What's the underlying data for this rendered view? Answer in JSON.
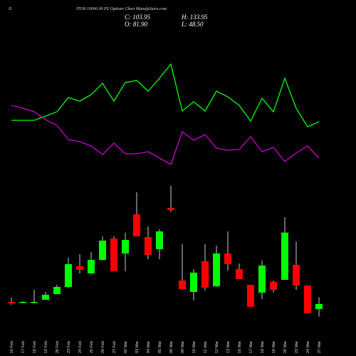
{
  "chart_data": {
    "type": "candlestick",
    "title_prefix": "D",
    "title": "ITON 10000.00 PE Options Chart MunafaSutra.com",
    "ohlc_labels": {
      "close": "C: 103.95",
      "high": "H: 133.95",
      "open": "O: 81.90",
      "low": "L: 48.50"
    },
    "categories": [
      "16 Feb",
      "17 Feb",
      "18 Feb",
      "19 Feb",
      "20 Feb",
      "23 Feb",
      "24 Feb",
      "25 Feb",
      "26 Feb",
      "27 Feb",
      "02 Mar",
      "03 Mar",
      "04 Mar",
      "05 Mar",
      "06 Mar",
      "09 Mar",
      "10 Mar",
      "11 Mar",
      "12 Mar",
      "13 Mar",
      "16 Mar",
      "17 Mar",
      "18 Mar",
      "19 Mar",
      "20 Mar",
      "23 Mar",
      "24 Mar",
      "27 Mar"
    ],
    "open": [
      113.4,
      110.3,
      110.3,
      122.9,
      148.1,
      179.6,
      270.9,
      239.4,
      299.3,
      393.8,
      327.6,
      500.9,
      400,
      346.5,
      529.2,
      207.9,
      157.5,
      293,
      182.7,
      327.6,
      258.3,
      189,
      154.4,
      201.6,
      211,
      277.2,
      185.9,
      81.9
    ],
    "high": [
      132.3,
      116.6,
      167,
      157.5,
      189,
      308.7,
      324.5,
      333.9,
      403.2,
      403.2,
      419.9,
      598.5,
      447.3,
      434.7,
      626.9,
      368.6,
      258.3,
      368.6,
      362.3,
      425.3,
      283.5,
      189,
      296.1,
      207.9,
      488.3,
      381.2,
      185.9,
      133.95
    ],
    "low": [
      100.8,
      107.1,
      107.1,
      122.9,
      148.1,
      176.4,
      239.4,
      236.2,
      296.1,
      248.9,
      248.9,
      403.2,
      302.4,
      302.4,
      510.3,
      170.1,
      119.7,
      163.8,
      179.6,
      252,
      214.2,
      91.4,
      126,
      154.4,
      211,
      167,
      63,
      48.5
    ],
    "close": [
      107.1,
      113.4,
      113.4,
      144.9,
      179.6,
      280.4,
      255.2,
      299.3,
      384.3,
      248.9,
      387.5,
      403.2,
      321.3,
      425.3,
      519.8,
      170.1,
      242.6,
      176.4,
      327.6,
      280.4,
      214.2,
      91.4,
      274.1,
      167,
      419.9,
      185.9,
      63,
      103.95
    ],
    "up_color": "#00ff00",
    "down_color": "#ff0000",
    "ylim": [
      30,
      630
    ],
    "indicator_ylim": [
      0,
      170
    ],
    "indicators": [
      {
        "color": "#00ff00",
        "values": [
          81,
          81,
          81,
          87,
          93,
          113,
          108,
          117,
          133,
          108,
          134,
          137,
          122,
          140,
          160,
          94,
          107,
          94,
          122,
          114,
          102,
          80,
          112,
          93,
          140,
          98,
          72,
          79
        ]
      },
      {
        "color": "#cc00cc",
        "values": [
          102,
          98,
          93,
          82,
          74,
          54,
          51,
          45,
          33,
          49,
          34,
          34,
          37,
          28,
          19,
          65,
          53,
          61,
          42,
          39,
          40,
          58,
          37,
          43,
          23,
          35,
          45,
          28
        ]
      }
    ]
  }
}
